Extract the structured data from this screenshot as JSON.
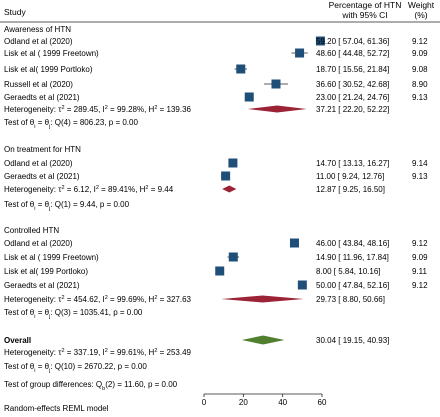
{
  "header": {
    "study": "Study",
    "effect_line1": "Percentage of HTN",
    "effect_line2": "with 95% CI",
    "weight_line1": "Weight",
    "weight_line2": "(%)"
  },
  "footnote": "Random-effects REML model",
  "colors": {
    "box": "#1f4e79",
    "subgroup_diamond": "#9b2335",
    "overall_diamond": "#4f7f2f",
    "line": "#222222"
  },
  "chart_data": {
    "type": "forest",
    "xlim": [
      0,
      60
    ],
    "xticks": [
      0,
      20,
      40,
      60
    ],
    "groups": [
      {
        "title": "Awareness of HTN",
        "studies": [
          {
            "label": "Odland et al (2020)",
            "est": 59.2,
            "lo": 57.04,
            "hi": 61.36,
            "ci_text": "59.20 [ 57.04, 61.36]",
            "weight": "9.12"
          },
          {
            "label": "Lisk et al ( 1999 Freetown)",
            "est": 48.6,
            "lo": 44.48,
            "hi": 52.72,
            "ci_text": "48.60 [ 44.48, 52.72]",
            "weight": "9.09"
          },
          {
            "label": "Lisk et al( 1999 Portloko)",
            "est": 18.7,
            "lo": 15.56,
            "hi": 21.84,
            "ci_text": "18.70 [ 15.56, 21.84]",
            "weight": "9.08"
          },
          {
            "label": "Russell et al (2020)",
            "est": 36.6,
            "lo": 30.52,
            "hi": 42.68,
            "ci_text": "36.60 [ 30.52, 42.68]",
            "weight": "8.90"
          },
          {
            "label": "Geraedts et al (2021)",
            "est": 23.0,
            "lo": 21.24,
            "hi": 24.76,
            "ci_text": "23.00 [ 21.24, 24.76]",
            "weight": "9.13"
          }
        ],
        "pooled": {
          "est": 37.21,
          "lo": 22.2,
          "hi": 52.22,
          "ci_text": "37.21 [ 22.20, 52.22]"
        },
        "heterogeneity": {
          "prefix": "Heterogeneity: ",
          "tau2_value": " = 289.45, ",
          "i2_value": " = 99.28%, ",
          "h2_value": " = 139.36"
        },
        "test": {
          "prefix": "Test of ",
          "middle": " = ",
          "suffix": ": Q(4) = 806.23, p = 0.00"
        }
      },
      {
        "title": "On treatment for HTN",
        "studies": [
          {
            "label": "Odland et al (2020)",
            "est": 14.7,
            "lo": 13.13,
            "hi": 16.27,
            "ci_text": "14.70 [ 13.13, 16.27]",
            "weight": "9.14"
          },
          {
            "label": "Geraedts et al (2021)",
            "est": 11.0,
            "lo": 9.24,
            "hi": 12.76,
            "ci_text": "11.00 [ 9.24, 12.76]",
            "weight": "9.13"
          }
        ],
        "pooled": {
          "est": 12.87,
          "lo": 9.25,
          "hi": 16.5,
          "ci_text": "12.87 [ 9.25, 16.50]"
        },
        "heterogeneity": {
          "prefix": "Heterogeneity: ",
          "tau2_value": " = 6.12, ",
          "i2_value": " = 89.41%, ",
          "h2_value": " = 9.44"
        },
        "test": {
          "prefix": "Test of ",
          "middle": " = ",
          "suffix": ": Q(1) = 9.44, p = 0.00"
        }
      },
      {
        "title": "Controlled HTN",
        "studies": [
          {
            "label": "Odland et al (2020)",
            "est": 46.0,
            "lo": 43.84,
            "hi": 48.16,
            "ci_text": "46.00 [ 43.84, 48.16]",
            "weight": "9.12"
          },
          {
            "label": "Lisk et al ( 1999 Freetown)",
            "est": 14.9,
            "lo": 11.96,
            "hi": 17.84,
            "ci_text": "14.90 [ 11.96, 17.84]",
            "weight": "9.09"
          },
          {
            "label": "Lisk et al( 199 Portloko)",
            "est": 8.0,
            "lo": 5.84,
            "hi": 10.16,
            "ci_text": "8.00 [ 5.84, 10.16]",
            "weight": "9.11"
          },
          {
            "label": "Geraedts et al (2021)",
            "est": 50.0,
            "lo": 47.84,
            "hi": 52.16,
            "ci_text": "50.00 [ 47.84, 52.16]",
            "weight": "9.12"
          }
        ],
        "pooled": {
          "est": 29.73,
          "lo": 8.8,
          "hi": 50.66,
          "ci_text": "29.73 [ 8.80, 50.66]"
        },
        "heterogeneity": {
          "prefix": "Heterogeneity: ",
          "tau2_value": " = 454.62, ",
          "i2_value": " = 99.69%, ",
          "h2_value": " = 327.63"
        },
        "test": {
          "prefix": "Test of ",
          "middle": " = ",
          "suffix": ": Q(3) = 1035.41, p = 0.00"
        }
      }
    ],
    "overall": {
      "title": "Overall",
      "pooled": {
        "est": 30.04,
        "lo": 19.15,
        "hi": 40.93,
        "ci_text": "30.04 [ 19.15, 40.93]"
      },
      "heterogeneity": {
        "prefix": "Heterogeneity: ",
        "tau2_value": " = 337.19, ",
        "i2_value": " = 99.61%, ",
        "h2_value": " = 253.49"
      },
      "test": {
        "prefix": "Test of ",
        "middle": " = ",
        "suffix": ": Q(10) = 2670.22, p = 0.00"
      },
      "group_test": {
        "prefix": "Test of group differences: ",
        "suffix": "(2) = 11.60, p = 0.00"
      }
    }
  }
}
